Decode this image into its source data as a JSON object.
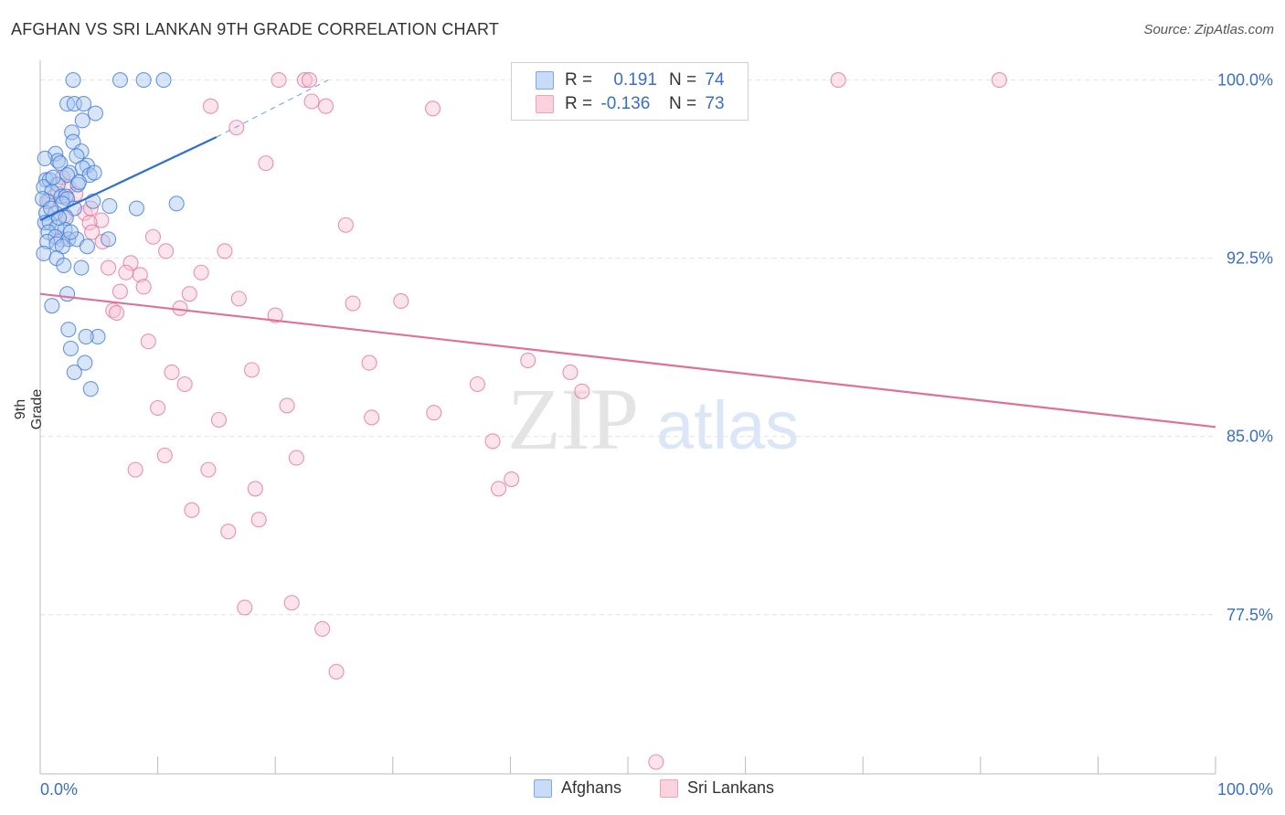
{
  "title": "AFGHAN VS SRI LANKAN 9TH GRADE CORRELATION CHART",
  "source": "Source: ZipAtlas.com",
  "watermark": {
    "zip": "ZIP",
    "atlas": "atlas"
  },
  "legend": {
    "rows": [
      {
        "r_label": "R =",
        "r_value": "0.191",
        "n_label": "N =",
        "n_value": "74",
        "color": "#7ea9e8"
      },
      {
        "r_label": "R =",
        "r_value": "-0.136",
        "n_label": "N =",
        "n_value": "73",
        "color": "#f4a0bb"
      }
    ]
  },
  "bottom_legend": [
    {
      "label": "Afghans",
      "color": "#7ea9e8"
    },
    {
      "label": "Sri Lankans",
      "color": "#f4a0bb"
    }
  ],
  "chart_data": {
    "type": "scatter",
    "title": "AFGHAN VS SRI LANKAN 9TH GRADE CORRELATION CHART",
    "xlabel": "",
    "ylabel": "9th Grade",
    "xlim": [
      0,
      100
    ],
    "ylim": [
      70.8,
      100.6
    ],
    "x_tick_labels": [
      "0.0%",
      "100.0%"
    ],
    "y_ticks": [
      77.5,
      85.0,
      92.5,
      100.0
    ],
    "y_tick_labels": [
      "77.5%",
      "85.0%",
      "92.5%",
      "100.0%"
    ],
    "grid": true,
    "series": [
      {
        "name": "Afghans",
        "color": "#3a78d4",
        "fill": "#a8c6f0",
        "trend": {
          "x0": 0,
          "y0": 94.1,
          "x1": 15,
          "y1": 97.6,
          "dash_to_x": 24.5,
          "dash_to_y": 100.0
        },
        "points": [
          [
            2.8,
            100.0
          ],
          [
            6.8,
            100.0
          ],
          [
            8.8,
            100.0
          ],
          [
            10.5,
            100.0
          ],
          [
            2.3,
            99.0
          ],
          [
            2.9,
            99.0
          ],
          [
            3.7,
            99.0
          ],
          [
            4.7,
            98.6
          ],
          [
            3.6,
            98.3
          ],
          [
            2.7,
            97.8
          ],
          [
            2.8,
            97.4
          ],
          [
            3.5,
            97.0
          ],
          [
            3.1,
            96.8
          ],
          [
            1.3,
            96.9
          ],
          [
            1.5,
            96.6
          ],
          [
            1.7,
            96.5
          ],
          [
            4.0,
            96.4
          ],
          [
            3.6,
            96.3
          ],
          [
            2.5,
            96.1
          ],
          [
            2.3,
            96.0
          ],
          [
            4.2,
            96.0
          ],
          [
            0.5,
            95.8
          ],
          [
            0.8,
            95.8
          ],
          [
            1.5,
            95.6
          ],
          [
            3.2,
            95.6
          ],
          [
            0.3,
            95.5
          ],
          [
            1.0,
            95.3
          ],
          [
            1.8,
            95.1
          ],
          [
            2.2,
            95.1
          ],
          [
            2.3,
            95.0
          ],
          [
            0.6,
            94.9
          ],
          [
            1.9,
            94.8
          ],
          [
            4.5,
            94.9
          ],
          [
            5.9,
            94.7
          ],
          [
            8.2,
            94.6
          ],
          [
            11.6,
            94.8
          ],
          [
            2.9,
            94.6
          ],
          [
            0.5,
            94.4
          ],
          [
            1.3,
            94.4
          ],
          [
            2.2,
            94.2
          ],
          [
            0.4,
            94.0
          ],
          [
            0.8,
            94.0
          ],
          [
            1.4,
            93.8
          ],
          [
            2.1,
            93.7
          ],
          [
            0.7,
            93.6
          ],
          [
            1.3,
            93.4
          ],
          [
            2.4,
            93.3
          ],
          [
            3.1,
            93.3
          ],
          [
            5.8,
            93.3
          ],
          [
            0.6,
            93.2
          ],
          [
            1.4,
            93.1
          ],
          [
            1.9,
            93.0
          ],
          [
            4.0,
            93.0
          ],
          [
            0.3,
            92.7
          ],
          [
            1.4,
            92.5
          ],
          [
            2.0,
            92.2
          ],
          [
            3.5,
            92.1
          ],
          [
            2.3,
            91.0
          ],
          [
            1.0,
            90.5
          ],
          [
            2.4,
            89.5
          ],
          [
            4.9,
            89.2
          ],
          [
            3.9,
            89.2
          ],
          [
            2.6,
            88.7
          ],
          [
            3.8,
            88.1
          ],
          [
            2.9,
            87.7
          ],
          [
            4.3,
            87.0
          ],
          [
            0.4,
            96.7
          ],
          [
            1.1,
            95.9
          ],
          [
            0.2,
            95.0
          ],
          [
            1.6,
            94.2
          ],
          [
            2.6,
            93.6
          ],
          [
            3.3,
            95.7
          ],
          [
            0.9,
            94.6
          ],
          [
            4.6,
            96.1
          ]
        ]
      },
      {
        "name": "Sri Lankans",
        "color": "#e0709a",
        "fill": "#f8c4d4",
        "trend": {
          "x0": 0,
          "y0": 91.0,
          "x1": 100,
          "y1": 85.4
        },
        "points": [
          [
            20.3,
            100.0
          ],
          [
            22.5,
            100.0
          ],
          [
            22.9,
            100.0
          ],
          [
            67.9,
            100.0
          ],
          [
            81.6,
            100.0
          ],
          [
            23.1,
            99.1
          ],
          [
            24.3,
            98.9
          ],
          [
            14.5,
            98.9
          ],
          [
            33.4,
            98.8
          ],
          [
            16.7,
            98.0
          ],
          [
            19.2,
            96.5
          ],
          [
            1.9,
            95.9
          ],
          [
            2.4,
            95.5
          ],
          [
            1.5,
            95.2
          ],
          [
            0.8,
            94.9
          ],
          [
            3.8,
            94.4
          ],
          [
            2.1,
            94.3
          ],
          [
            5.2,
            94.1
          ],
          [
            4.2,
            94.0
          ],
          [
            26.0,
            93.9
          ],
          [
            4.4,
            93.6
          ],
          [
            9.6,
            93.4
          ],
          [
            1.8,
            93.3
          ],
          [
            5.3,
            93.2
          ],
          [
            15.7,
            92.8
          ],
          [
            10.7,
            92.8
          ],
          [
            7.7,
            92.3
          ],
          [
            5.8,
            92.1
          ],
          [
            13.7,
            91.9
          ],
          [
            7.3,
            91.9
          ],
          [
            8.5,
            91.8
          ],
          [
            8.8,
            91.3
          ],
          [
            6.8,
            91.1
          ],
          [
            12.7,
            91.0
          ],
          [
            16.9,
            90.8
          ],
          [
            26.6,
            90.6
          ],
          [
            30.7,
            90.7
          ],
          [
            6.2,
            90.3
          ],
          [
            11.9,
            90.4
          ],
          [
            6.5,
            90.2
          ],
          [
            20.0,
            90.1
          ],
          [
            9.2,
            89.0
          ],
          [
            18.0,
            87.8
          ],
          [
            28.0,
            88.1
          ],
          [
            41.5,
            88.2
          ],
          [
            11.2,
            87.7
          ],
          [
            45.1,
            87.7
          ],
          [
            12.3,
            87.2
          ],
          [
            37.2,
            87.2
          ],
          [
            46.1,
            86.9
          ],
          [
            10.0,
            86.2
          ],
          [
            21.0,
            86.3
          ],
          [
            33.5,
            86.0
          ],
          [
            28.2,
            85.8
          ],
          [
            15.2,
            85.7
          ],
          [
            38.5,
            84.8
          ],
          [
            10.6,
            84.2
          ],
          [
            21.8,
            84.1
          ],
          [
            8.1,
            83.6
          ],
          [
            14.3,
            83.6
          ],
          [
            40.1,
            83.2
          ],
          [
            18.3,
            82.8
          ],
          [
            39.0,
            82.8
          ],
          [
            12.9,
            81.9
          ],
          [
            18.6,
            81.5
          ],
          [
            16.0,
            81.0
          ],
          [
            21.4,
            78.0
          ],
          [
            17.4,
            77.8
          ],
          [
            24.0,
            76.9
          ],
          [
            25.2,
            75.1
          ],
          [
            52.4,
            71.3
          ],
          [
            4.3,
            94.6
          ],
          [
            3.0,
            95.2
          ]
        ]
      }
    ]
  }
}
